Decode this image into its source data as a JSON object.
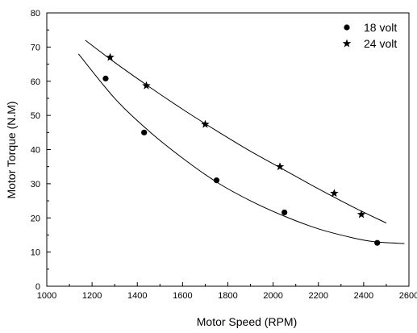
{
  "chart_data": {
    "type": "scatter",
    "title": "",
    "xlabel": "Motor Speed (RPM)",
    "ylabel": "Motor Torque (N.M)",
    "xlim": [
      1000,
      2600
    ],
    "ylim": [
      0,
      80
    ],
    "x_ticks": [
      1000,
      1200,
      1400,
      1600,
      1800,
      2000,
      2200,
      2400,
      2600
    ],
    "y_ticks": [
      0,
      10,
      20,
      30,
      40,
      50,
      60,
      70,
      80
    ],
    "grid": false,
    "legend_position": "top-right",
    "series": [
      {
        "name": "18 volt",
        "marker": "circle",
        "color": "#000000",
        "points": [
          {
            "x": 1260,
            "y": 60.8
          },
          {
            "x": 1430,
            "y": 45
          },
          {
            "x": 1750,
            "y": 31
          },
          {
            "x": 2050,
            "y": 21.6
          },
          {
            "x": 2460,
            "y": 12.7
          }
        ],
        "fit_line": [
          {
            "x": 1140,
            "y": 68
          },
          {
            "x": 1300,
            "y": 55
          },
          {
            "x": 1450,
            "y": 45.5
          },
          {
            "x": 1600,
            "y": 37.5
          },
          {
            "x": 1750,
            "y": 30.5
          },
          {
            "x": 1900,
            "y": 25
          },
          {
            "x": 2050,
            "y": 20.5
          },
          {
            "x": 2200,
            "y": 16.8
          },
          {
            "x": 2350,
            "y": 14.2
          },
          {
            "x": 2450,
            "y": 13
          },
          {
            "x": 2580,
            "y": 12.5
          }
        ]
      },
      {
        "name": "24 volt",
        "marker": "star",
        "color": "#000000",
        "points": [
          {
            "x": 1280,
            "y": 67
          },
          {
            "x": 1440,
            "y": 58.7
          },
          {
            "x": 1700,
            "y": 47.4
          },
          {
            "x": 2030,
            "y": 35
          },
          {
            "x": 2270,
            "y": 27.2
          },
          {
            "x": 2390,
            "y": 21
          }
        ],
        "fit_line": [
          {
            "x": 1170,
            "y": 72
          },
          {
            "x": 1300,
            "y": 65.5
          },
          {
            "x": 1450,
            "y": 58.5
          },
          {
            "x": 1600,
            "y": 51.8
          },
          {
            "x": 1750,
            "y": 45.5
          },
          {
            "x": 1900,
            "y": 39.5
          },
          {
            "x": 2050,
            "y": 34
          },
          {
            "x": 2200,
            "y": 28.5
          },
          {
            "x": 2350,
            "y": 23.3
          },
          {
            "x": 2500,
            "y": 18.5
          }
        ]
      }
    ]
  }
}
